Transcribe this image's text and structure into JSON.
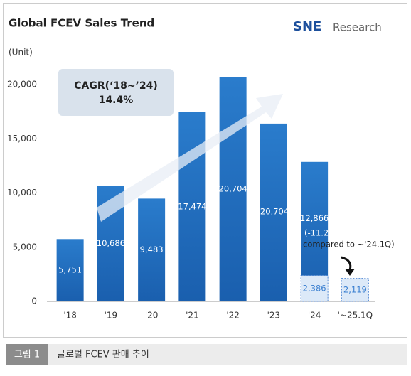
{
  "chart_data": {
    "type": "bar",
    "title": "Global FCEV Sales Trend",
    "logo": [
      "SNE",
      "Research"
    ],
    "unit_label": "(Unit)",
    "categories": [
      "'18",
      "'19",
      "'20",
      "'21",
      "'22",
      "'23",
      "'24",
      "'~25.1Q"
    ],
    "series": [
      {
        "color": "#1f6cbf",
        "values": [
          5751,
          10686,
          9483,
          17474,
          20704,
          16400,
          12866,
          null
        ],
        "value_labels": [
          "5,751",
          "10,686",
          "9,483",
          "17,474",
          "20,704",
          null,
          "12,866",
          null
        ]
      },
      {
        "color": "#dce9f8",
        "values": [
          null,
          null,
          null,
          null,
          null,
          null,
          2386,
          2119
        ],
        "value_labels": [
          null,
          null,
          null,
          null,
          null,
          null,
          "2,386",
          "2,119"
        ]
      }
    ],
    "ylim": [
      0,
      20000
    ],
    "yticks": [
      0,
      {
        "value": 5000,
        "label": "5,000"
      },
      {
        "value": 10000,
        "label": "10,000"
      },
      {
        "value": 15000,
        "label": "15,000"
      },
      {
        "value": 20000,
        "label": "20,000"
      }
    ],
    "grid": false,
    "annotations": [
      "20,704",
      "(-11.2%",
      "compared to ~'24.1Q)"
    ],
    "cagr": {
      "label": "CAGR(‘18~’24)",
      "value": "14.4%"
    },
    "caption": {
      "number": "그림 1",
      "text": "글로벌 FCEV 판매 추이"
    }
  }
}
